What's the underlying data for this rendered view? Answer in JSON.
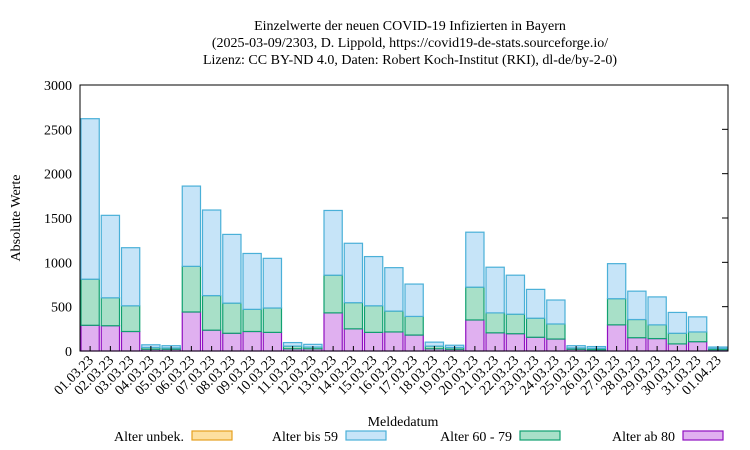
{
  "chart_data": {
    "type": "stacked_bar",
    "title": [
      "Einzelwerte der neuen COVID-19 Infizierten in Bayern",
      "(2025-03-09/2303, D. Lippold, https://covid19-de-stats.sourceforge.io/",
      "Lizenz: CC BY-ND 4.0, Daten: Robert Koch-Institut (RKI), dl-de/by-2-0)"
    ],
    "x_label": "Meldedatum",
    "y_label": "Absolute Werte",
    "categories": [
      "01.03.23",
      "02.03.23",
      "03.03.23",
      "04.03.23",
      "05.03.23",
      "06.03.23",
      "07.03.23",
      "08.03.23",
      "09.03.23",
      "10.03.23",
      "11.03.23",
      "12.03.23",
      "13.03.23",
      "14.03.23",
      "15.03.23",
      "16.03.23",
      "17.03.23",
      "18.03.23",
      "19.03.23",
      "20.03.23",
      "21.03.23",
      "22.03.23",
      "23.03.23",
      "24.03.23",
      "25.03.23",
      "26.03.23",
      "27.03.23",
      "28.03.23",
      "29.03.23",
      "30.03.23",
      "31.03.23",
      "01.04.23"
    ],
    "series": [
      {
        "name": "Alter ab 80",
        "color": "#e0b0f0",
        "stroke": "#9010c0",
        "values": [
          290,
          285,
          220,
          20,
          20,
          440,
          235,
          200,
          220,
          210,
          25,
          25,
          430,
          250,
          210,
          215,
          180,
          25,
          20,
          350,
          205,
          195,
          155,
          135,
          20,
          15,
          295,
          150,
          140,
          80,
          105,
          15
        ]
      },
      {
        "name": "Alter 60 - 79",
        "color": "#a8e0c8",
        "stroke": "#10a070",
        "values": [
          520,
          315,
          290,
          20,
          15,
          515,
          390,
          340,
          250,
          275,
          30,
          20,
          425,
          295,
          300,
          235,
          210,
          30,
          20,
          370,
          225,
          220,
          215,
          170,
          15,
          15,
          295,
          205,
          155,
          120,
          110,
          15
        ]
      },
      {
        "name": "Alter bis 59",
        "color": "#c6e4f8",
        "stroke": "#4ab0d8",
        "values": [
          1810,
          930,
          655,
          30,
          25,
          905,
          965,
          775,
          630,
          560,
          40,
          30,
          730,
          670,
          555,
          490,
          365,
          45,
          25,
          620,
          515,
          440,
          325,
          270,
          25,
          20,
          395,
          320,
          315,
          235,
          170,
          15
        ]
      },
      {
        "name": "Alter unbek.",
        "color": "#fde0a0",
        "stroke": "#e6a020",
        "values": [
          0,
          0,
          0,
          0,
          0,
          0,
          0,
          0,
          0,
          0,
          0,
          0,
          0,
          0,
          0,
          0,
          0,
          0,
          0,
          0,
          0,
          0,
          0,
          0,
          0,
          0,
          0,
          0,
          0,
          0,
          0,
          0
        ]
      }
    ],
    "legend_order": [
      3,
      2,
      1,
      0
    ],
    "ylim": [
      0,
      3000
    ],
    "yticks": [
      0,
      500,
      1000,
      1500,
      2000,
      2500,
      3000
    ],
    "grid": false
  }
}
